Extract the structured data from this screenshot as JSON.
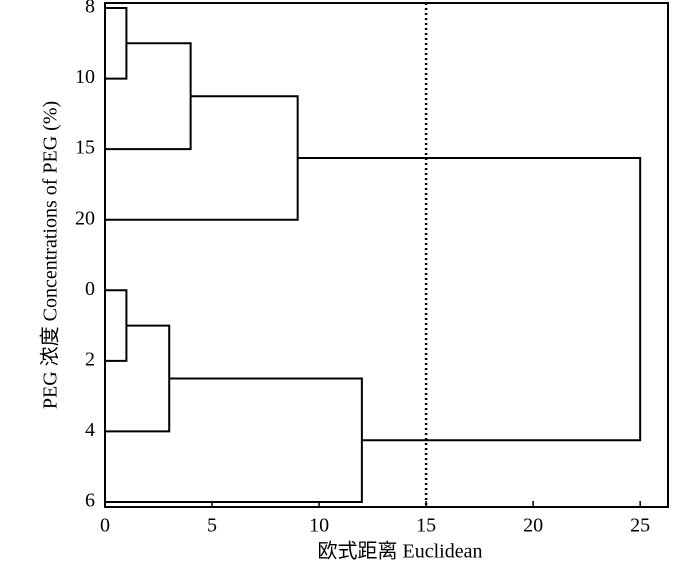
{
  "chart_data": {
    "type": "dendrogram",
    "x_label": "欧式距离 Euclidean",
    "y_label": "PEG 浓度 Concentrations of PEG (%)",
    "leaves": [
      "8",
      "10",
      "15",
      "20",
      "0",
      "2",
      "4",
      "6"
    ],
    "merges": [
      {
        "children": [
          0,
          1
        ],
        "height": 1
      },
      {
        "children": [
          8,
          2
        ],
        "height": 4
      },
      {
        "children": [
          9,
          3
        ],
        "height": 9
      },
      {
        "children": [
          4,
          5
        ],
        "height": 1
      },
      {
        "children": [
          11,
          6
        ],
        "height": 3
      },
      {
        "children": [
          12,
          7
        ],
        "height": 12
      },
      {
        "children": [
          10,
          13
        ],
        "height": 25
      }
    ],
    "threshold": 15,
    "xlim": [
      0,
      26.3
    ],
    "xticks": [
      0,
      5,
      10,
      15,
      20,
      25
    ],
    "color": "#000000"
  }
}
